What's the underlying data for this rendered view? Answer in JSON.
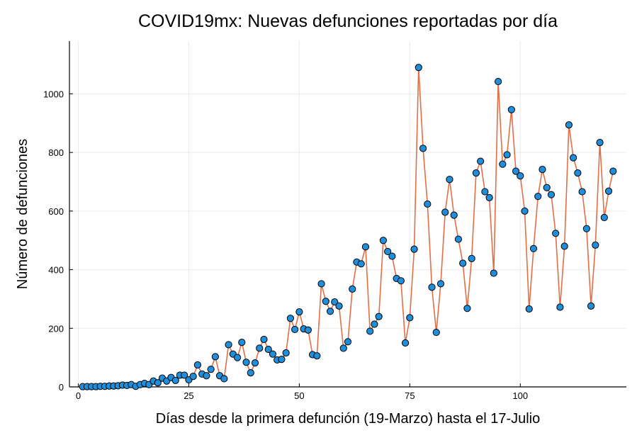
{
  "chart_data": {
    "type": "scatter",
    "title": "COVID19mx: Nuevas defunciones reportadas por día",
    "xlabel": "Días desde la primera defunción (19-Marzo) hasta el 17-Julio",
    "ylabel": "Número de defunciones",
    "xlim": [
      -2,
      124
    ],
    "ylim": [
      0,
      1180
    ],
    "xticks": [
      0,
      25,
      50,
      75,
      100
    ],
    "yticks": [
      0,
      200,
      400,
      600,
      800,
      1000
    ],
    "grid": true,
    "legend": "none",
    "colors": {
      "marker": "#1f8fdc",
      "marker_edge": "#000000",
      "line": "#e26f46",
      "grid": "#ebebeb",
      "axis": "#000000"
    },
    "series": [
      {
        "x": [
          1,
          2,
          3,
          4,
          5,
          6,
          7,
          8,
          9,
          10,
          11,
          12,
          13,
          14,
          15,
          16,
          17,
          18,
          19,
          20,
          21,
          22,
          23,
          24,
          25,
          26,
          27,
          28,
          29,
          30,
          31,
          32,
          33,
          34,
          35,
          36,
          37,
          38,
          39,
          40,
          41,
          42,
          43,
          44,
          45,
          46,
          47,
          48,
          49,
          50,
          51,
          52,
          53,
          54,
          55,
          56,
          57,
          58,
          59,
          60,
          61,
          62,
          63,
          64,
          65,
          66,
          67,
          68,
          69,
          70,
          71,
          72,
          73,
          74,
          75,
          76,
          77,
          78,
          79,
          80,
          81,
          82,
          83,
          84,
          85,
          86,
          87,
          88,
          89,
          90,
          91,
          92,
          93,
          94,
          95,
          96,
          97,
          98,
          99,
          100,
          101,
          102,
          103,
          104,
          105,
          106,
          107,
          108,
          109,
          110,
          111,
          112,
          113,
          114,
          115,
          116,
          117,
          118,
          119,
          120,
          121
        ],
        "y": [
          1,
          1,
          1,
          1,
          2,
          2,
          3,
          3,
          4,
          6,
          5,
          8,
          2,
          8,
          12,
          8,
          20,
          14,
          30,
          20,
          32,
          22,
          40,
          40,
          24,
          36,
          75,
          44,
          38,
          60,
          103,
          38,
          28,
          144,
          112,
          100,
          152,
          84,
          48,
          82,
          132,
          162,
          128,
          112,
          92,
          94,
          116,
          234,
          196,
          256,
          198,
          194,
          110,
          106,
          352,
          292,
          258,
          290,
          276,
          132,
          154,
          334,
          426,
          420,
          478,
          190,
          214,
          240,
          500,
          462,
          446,
          370,
          362,
          150,
          236,
          470,
          1090,
          814,
          624,
          340,
          186,
          352,
          596,
          708,
          586,
          504,
          422,
          268,
          438,
          730,
          770,
          666,
          646,
          388,
          1042,
          760,
          792,
          946,
          736,
          720,
          600,
          266,
          472,
          650,
          742,
          680,
          656,
          524,
          272,
          480,
          894,
          782,
          730,
          666,
          540,
          276,
          484,
          834,
          578,
          668,
          736
        ]
      }
    ]
  }
}
